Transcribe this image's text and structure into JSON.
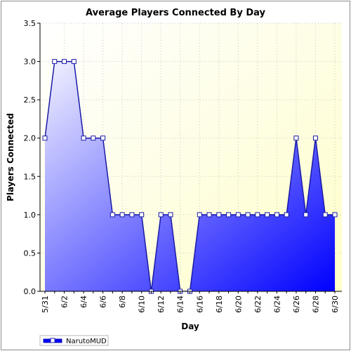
{
  "chart_data": {
    "type": "area",
    "title": "Average Players Connected By Day",
    "xlabel": "Day",
    "ylabel": "Players Connected",
    "categories": [
      "5/31",
      "6/1",
      "6/2",
      "6/3",
      "6/4",
      "6/5",
      "6/6",
      "6/7",
      "6/8",
      "6/9",
      "6/10",
      "6/11",
      "6/12",
      "6/13",
      "6/14",
      "6/15",
      "6/16",
      "6/17",
      "6/18",
      "6/19",
      "6/20",
      "6/21",
      "6/22",
      "6/23",
      "6/24",
      "6/25",
      "6/26",
      "6/27",
      "6/28",
      "6/29",
      "6/30"
    ],
    "x_tick_labels": [
      "5/31",
      "6/2",
      "6/4",
      "6/6",
      "6/8",
      "6/10",
      "6/12",
      "6/14",
      "6/16",
      "6/18",
      "6/20",
      "6/22",
      "6/24",
      "6/26",
      "6/28",
      "6/30"
    ],
    "y_tick_labels": [
      "0.0",
      "0.5",
      "1.0",
      "1.5",
      "2.0",
      "2.5",
      "3.0",
      "3.5"
    ],
    "ylim": [
      0,
      3.5
    ],
    "grid": true,
    "legend_position": "bottom-left",
    "series": [
      {
        "name": "NarutoMUD",
        "values": [
          2,
          3,
          3,
          3,
          2,
          2,
          2,
          1,
          1,
          1,
          1,
          0,
          1,
          1,
          0,
          0,
          1,
          1,
          1,
          1,
          1,
          1,
          1,
          1,
          1,
          1,
          2,
          1,
          2,
          1,
          1
        ]
      }
    ],
    "colors": {
      "line": "#1a1aa8",
      "fill_light": "#f2f2ff",
      "fill_dark": "#0000ff",
      "plot_bg_top": "#ffffc8",
      "plot_bg_bottom": "#ffffff",
      "marker_fill": "#ffffff"
    }
  }
}
